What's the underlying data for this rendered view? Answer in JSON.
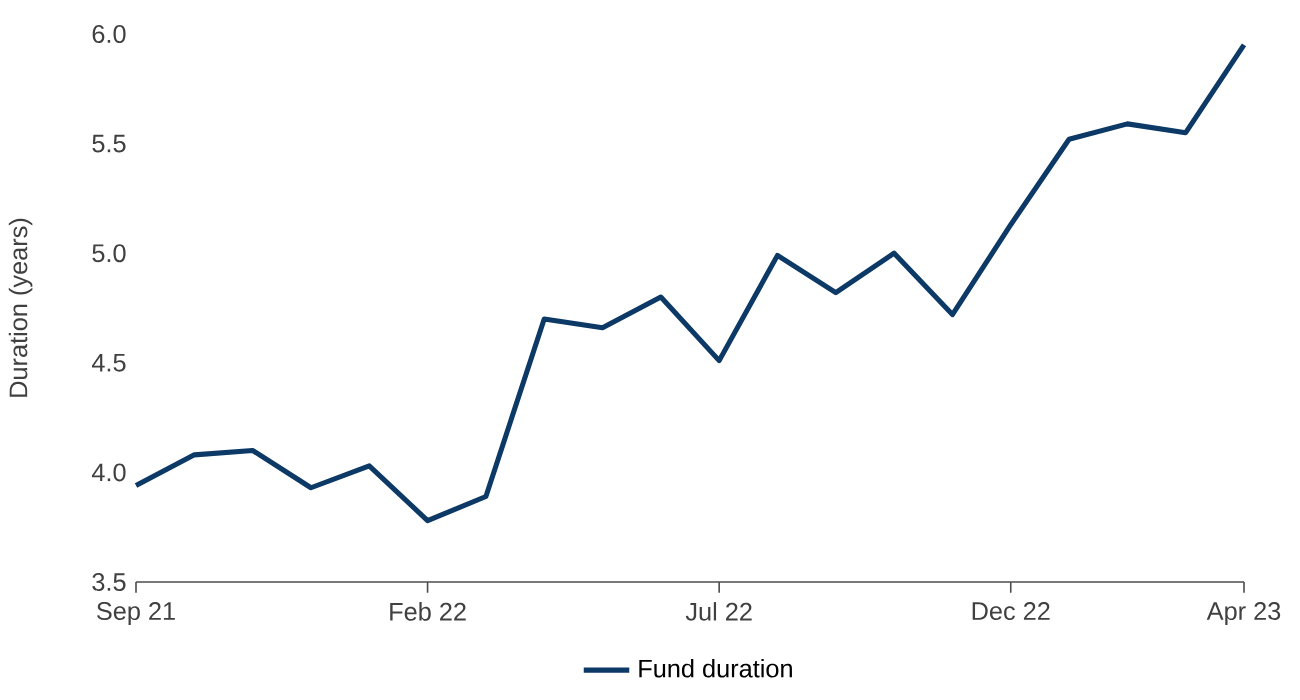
{
  "chart_data": {
    "type": "line",
    "ylabel": "Duration (years)",
    "legend": "bottom",
    "x": [
      "2021-09",
      "2021-10",
      "2021-11",
      "2021-12",
      "2022-01",
      "2022-02",
      "2022-03",
      "2022-04",
      "2022-05",
      "2022-06",
      "2022-07",
      "2022-08",
      "2022-09",
      "2022-10",
      "2022-11",
      "2022-12",
      "2023-01",
      "2023-02",
      "2023-03",
      "2023-04"
    ],
    "series": [
      {
        "name": "Fund duration",
        "color": "#0c3966",
        "values": [
          3.94,
          4.08,
          4.1,
          3.93,
          4.03,
          3.78,
          3.89,
          4.7,
          4.66,
          4.8,
          4.51,
          4.99,
          4.82,
          5.0,
          4.72,
          5.13,
          5.52,
          5.59,
          5.55,
          5.95
        ]
      }
    ],
    "xlim": [
      "2021-09",
      "2023-04"
    ],
    "xticks": [
      {
        "value": "2021-09",
        "label": "Sep 21"
      },
      {
        "value": "2022-02",
        "label": "Feb 22"
      },
      {
        "value": "2022-07",
        "label": "Jul 22"
      },
      {
        "value": "2022-12",
        "label": "Dec 22"
      },
      {
        "value": "2023-04",
        "label": "Apr 23"
      }
    ],
    "ylim": [
      3.5,
      6.0
    ],
    "yticks": [
      {
        "value": 3.5,
        "label": "3.5"
      },
      {
        "value": 4.0,
        "label": "4.0"
      },
      {
        "value": 4.5,
        "label": "4.5"
      },
      {
        "value": 5.0,
        "label": "5.0"
      },
      {
        "value": 5.5,
        "label": "5.5"
      },
      {
        "value": 6.0,
        "label": "6.0"
      }
    ]
  }
}
